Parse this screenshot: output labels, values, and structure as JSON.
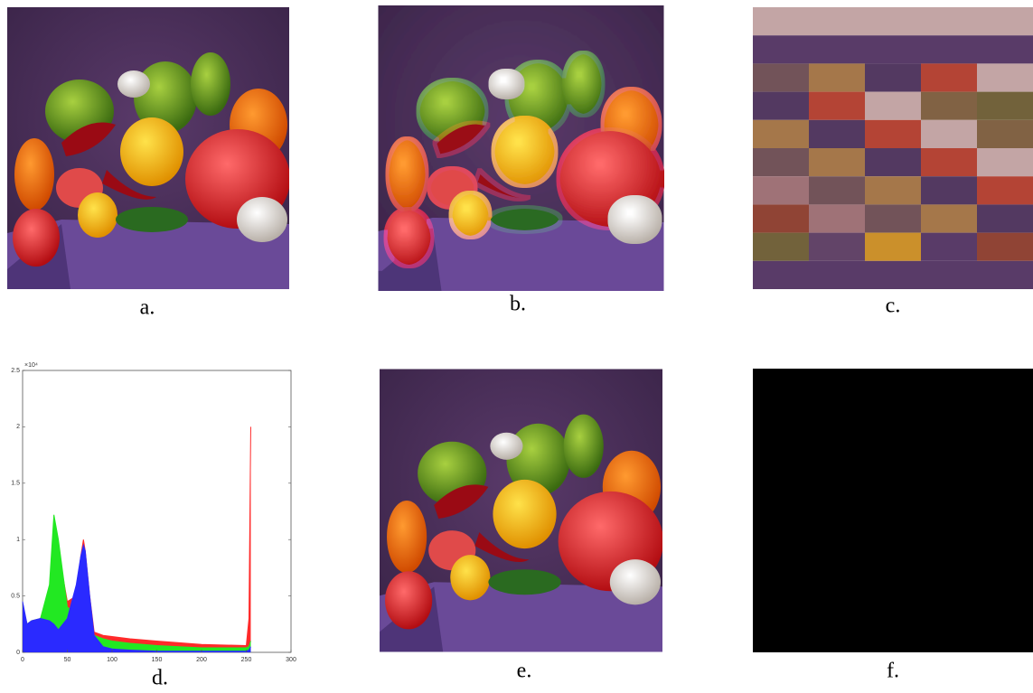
{
  "panels": [
    {
      "label": "a."
    },
    {
      "label": "b."
    },
    {
      "label": "c."
    },
    {
      "label": "d."
    },
    {
      "label": "e."
    },
    {
      "label": "f."
    }
  ],
  "chart_data": {
    "type": "area",
    "x": [
      0,
      5,
      10,
      20,
      30,
      35,
      40,
      50,
      60,
      65,
      68,
      70,
      75,
      80,
      90,
      100,
      120,
      150,
      200,
      250,
      253,
      255
    ],
    "series": [
      {
        "color": "#ff2a2a",
        "values": [
          0.4,
          0.25,
          0.28,
          0.3,
          0.55,
          1.1,
          0.9,
          0.45,
          0.5,
          0.85,
          1.0,
          0.9,
          0.5,
          0.18,
          0.15,
          0.14,
          0.12,
          0.1,
          0.07,
          0.06,
          0.3,
          2.0
        ]
      },
      {
        "color": "#22e822",
        "values": [
          0.4,
          0.25,
          0.28,
          0.3,
          0.6,
          1.22,
          1.0,
          0.4,
          0.35,
          0.6,
          0.7,
          0.6,
          0.3,
          0.15,
          0.12,
          0.1,
          0.08,
          0.06,
          0.04,
          0.04,
          0.05,
          0.1
        ]
      },
      {
        "color": "#2a2aff",
        "values": [
          0.45,
          0.25,
          0.28,
          0.3,
          0.28,
          0.25,
          0.2,
          0.3,
          0.6,
          0.85,
          0.95,
          0.9,
          0.5,
          0.15,
          0.05,
          0.03,
          0.02,
          0.01,
          0.01,
          0.01,
          0.02,
          0.05
        ]
      }
    ],
    "xlim": [
      0,
      300
    ],
    "xticks": [
      0,
      50,
      100,
      150,
      200,
      250,
      300
    ],
    "ylim": [
      0,
      2.5
    ],
    "yticks": [
      0,
      0.5,
      1,
      1.5,
      2,
      2.5
    ],
    "y_scale_label": "×10⁴"
  }
}
